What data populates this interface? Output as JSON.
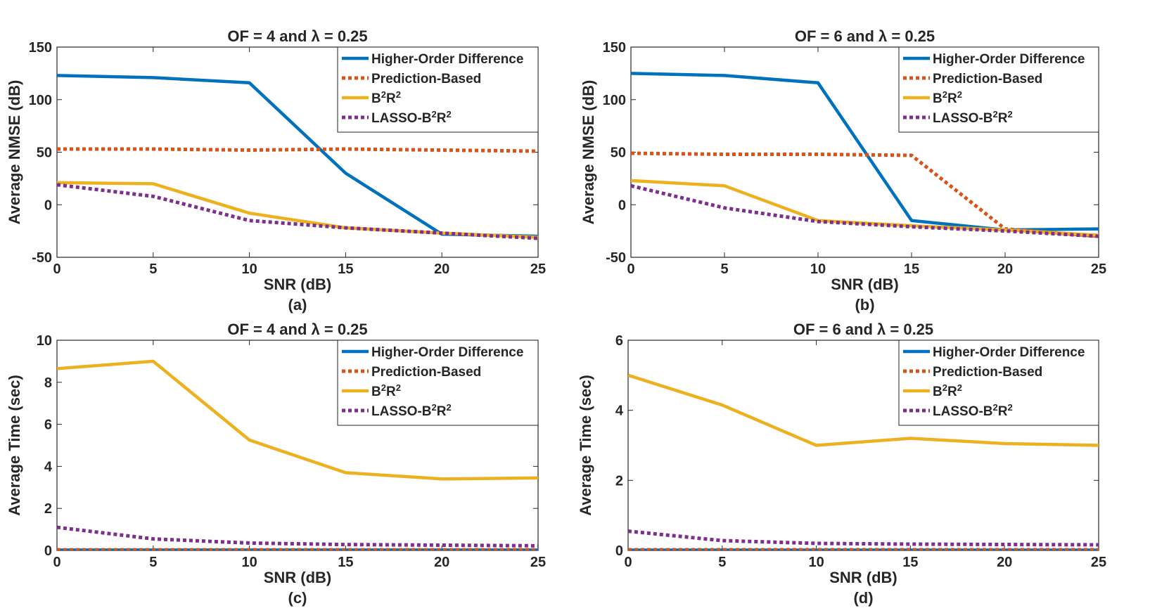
{
  "series_styles": [
    {
      "color": "#0072BD",
      "dash": "solid"
    },
    {
      "color": "#D95319",
      "dash": "dotted"
    },
    {
      "color": "#EDB120",
      "dash": "solid"
    },
    {
      "color": "#7E2F8E",
      "dash": "dotted"
    }
  ],
  "chart_data": [
    {
      "type": "line",
      "title": "OF = 4 and λ = 0.25",
      "caption": "(a)",
      "xlabel": "SNR (dB)",
      "ylabel": "Average NMSE (dB)",
      "xlim": [
        0,
        25
      ],
      "ylim": [
        -50,
        150
      ],
      "xticks": [
        0,
        5,
        10,
        15,
        20,
        25
      ],
      "yticks": [
        -50,
        0,
        50,
        100,
        150
      ],
      "legend": "top-right",
      "x": [
        0,
        5,
        10,
        15,
        20,
        25
      ],
      "series": [
        {
          "name": "Higher-Order Difference",
          "values": [
            123,
            121,
            116,
            30,
            -28,
            -30
          ]
        },
        {
          "name": "Prediction-Based",
          "values": [
            53,
            53,
            52,
            53,
            52,
            51
          ]
        },
        {
          "name": "B²R²",
          "values": [
            21,
            20,
            -8,
            -22,
            -27,
            -31
          ]
        },
        {
          "name": "LASSO-B²R²",
          "values": [
            19,
            8,
            -15,
            -22,
            -27,
            -32
          ]
        }
      ]
    },
    {
      "type": "line",
      "title": "OF = 6 and λ = 0.25",
      "caption": "(b)",
      "xlabel": "SNR (dB)",
      "ylabel": "Average NMSE (dB)",
      "xlim": [
        0,
        25
      ],
      "ylim": [
        -50,
        150
      ],
      "xticks": [
        0,
        5,
        10,
        15,
        20,
        25
      ],
      "yticks": [
        -50,
        0,
        50,
        100,
        150
      ],
      "legend": "top-right",
      "x": [
        0,
        5,
        10,
        15,
        20,
        25
      ],
      "series": [
        {
          "name": "Higher-Order Difference",
          "values": [
            125,
            123,
            116,
            -15,
            -24,
            -23
          ]
        },
        {
          "name": "Prediction-Based",
          "values": [
            49,
            48,
            48,
            47,
            -23,
            -30
          ]
        },
        {
          "name": "B²R²",
          "values": [
            23,
            18,
            -15,
            -20,
            -24,
            -29
          ]
        },
        {
          "name": "LASSO-B²R²",
          "values": [
            18,
            -3,
            -16,
            -21,
            -25,
            -30
          ]
        }
      ]
    },
    {
      "type": "line",
      "title": "OF = 4 and λ = 0.25",
      "caption": "(c)",
      "xlabel": "SNR (dB)",
      "ylabel": "Average Time (sec)",
      "xlim": [
        0,
        25
      ],
      "ylim": [
        0,
        10
      ],
      "xticks": [
        0,
        5,
        10,
        15,
        20,
        25
      ],
      "yticks": [
        0,
        2,
        4,
        6,
        8,
        10
      ],
      "legend": "top-right",
      "x": [
        0,
        5,
        10,
        15,
        20,
        25
      ],
      "series": [
        {
          "name": "Higher-Order Difference",
          "values": [
            0.02,
            0.02,
            0.02,
            0.02,
            0.02,
            0.02
          ]
        },
        {
          "name": "Prediction-Based",
          "values": [
            0.03,
            0.03,
            0.03,
            0.03,
            0.03,
            0.03
          ]
        },
        {
          "name": "B²R²",
          "values": [
            8.65,
            9.0,
            5.25,
            3.7,
            3.4,
            3.45
          ]
        },
        {
          "name": "LASSO-B²R²",
          "values": [
            1.1,
            0.55,
            0.35,
            0.28,
            0.25,
            0.22
          ]
        }
      ]
    },
    {
      "type": "line",
      "title": "OF = 6 and λ = 0.25",
      "caption": "(d)",
      "xlabel": "SNR (dB)",
      "ylabel": "Average Time (sec)",
      "xlim": [
        0,
        25
      ],
      "ylim": [
        0,
        6
      ],
      "xticks": [
        0,
        5,
        10,
        15,
        20,
        25
      ],
      "yticks": [
        0,
        2,
        4,
        6
      ],
      "legend": "top-right",
      "x": [
        0,
        5,
        10,
        15,
        20,
        25
      ],
      "series": [
        {
          "name": "Higher-Order Difference",
          "values": [
            0.01,
            0.01,
            0.01,
            0.01,
            0.01,
            0.01
          ]
        },
        {
          "name": "Prediction-Based",
          "values": [
            0.02,
            0.02,
            0.02,
            0.02,
            0.02,
            0.02
          ]
        },
        {
          "name": "B²R²",
          "values": [
            5.0,
            4.15,
            3.0,
            3.2,
            3.05,
            3.0
          ]
        },
        {
          "name": "LASSO-B²R²",
          "values": [
            0.55,
            0.28,
            0.2,
            0.18,
            0.17,
            0.16
          ]
        }
      ]
    }
  ]
}
